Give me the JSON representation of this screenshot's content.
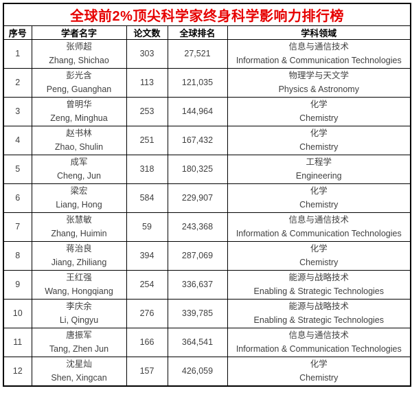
{
  "title": "全球前2%顶尖科学家终身科学影响力排行榜",
  "colors": {
    "title_text": "#e60000",
    "border": "#000000",
    "body_text": "#404040",
    "header_text": "#000000",
    "background": "#ffffff"
  },
  "table": {
    "columns": [
      {
        "label": "序号"
      },
      {
        "label": "学者名字"
      },
      {
        "label": "论文数"
      },
      {
        "label": "全球排名"
      },
      {
        "label": "学科领域"
      }
    ],
    "rows": [
      {
        "no": "1",
        "name_cn": "张师超",
        "name_en": "Zhang, Shichao",
        "papers": "303",
        "rank": "27,521",
        "field_cn": "信息与通信技术",
        "field_en": "Information & Communication Technologies"
      },
      {
        "no": "2",
        "name_cn": "彭光含",
        "name_en": "Peng, Guanghan",
        "papers": "113",
        "rank": "121,035",
        "field_cn": "物理学与天文学",
        "field_en": "Physics & Astronomy"
      },
      {
        "no": "3",
        "name_cn": "曾明华",
        "name_en": "Zeng, Minghua",
        "papers": "253",
        "rank": "144,964",
        "field_cn": "化学",
        "field_en": "Chemistry"
      },
      {
        "no": "4",
        "name_cn": "赵书林",
        "name_en": "Zhao, Shulin",
        "papers": "251",
        "rank": "167,432",
        "field_cn": "化学",
        "field_en": "Chemistry"
      },
      {
        "no": "5",
        "name_cn": "成军",
        "name_en": "Cheng, Jun",
        "papers": "318",
        "rank": "180,325",
        "field_cn": "工程学",
        "field_en": "Engineering"
      },
      {
        "no": "6",
        "name_cn": "梁宏",
        "name_en": "Liang, Hong",
        "papers": "584",
        "rank": "229,907",
        "field_cn": "化学",
        "field_en": "Chemistry"
      },
      {
        "no": "7",
        "name_cn": "张慧敏",
        "name_en": "Zhang, Huimin",
        "papers": "59",
        "rank": "243,368",
        "field_cn": "信息与通信技术",
        "field_en": "Information & Communication Technologies"
      },
      {
        "no": "8",
        "name_cn": "蒋治良",
        "name_en": "Jiang, Zhiliang",
        "papers": "394",
        "rank": "287,069",
        "field_cn": "化学",
        "field_en": "Chemistry"
      },
      {
        "no": "9",
        "name_cn": "王红强",
        "name_en": "Wang, Hongqiang",
        "papers": "254",
        "rank": "336,637",
        "field_cn": "能源与战略技术",
        "field_en": "Enabling & Strategic Technologies"
      },
      {
        "no": "10",
        "name_cn": "李庆余",
        "name_en": "Li, Qingyu",
        "papers": "276",
        "rank": "339,785",
        "field_cn": "能源与战略技术",
        "field_en": "Enabling & Strategic Technologies"
      },
      {
        "no": "11",
        "name_cn": "唐振军",
        "name_en": "Tang, Zhen Jun",
        "papers": "166",
        "rank": "364,541",
        "field_cn": "信息与通信技术",
        "field_en": "Information & Communication Technologies"
      },
      {
        "no": "12",
        "name_cn": "沈星灿",
        "name_en": "Shen, Xingcan",
        "papers": "157",
        "rank": "426,059",
        "field_cn": "化学",
        "field_en": "Chemistry"
      }
    ]
  }
}
